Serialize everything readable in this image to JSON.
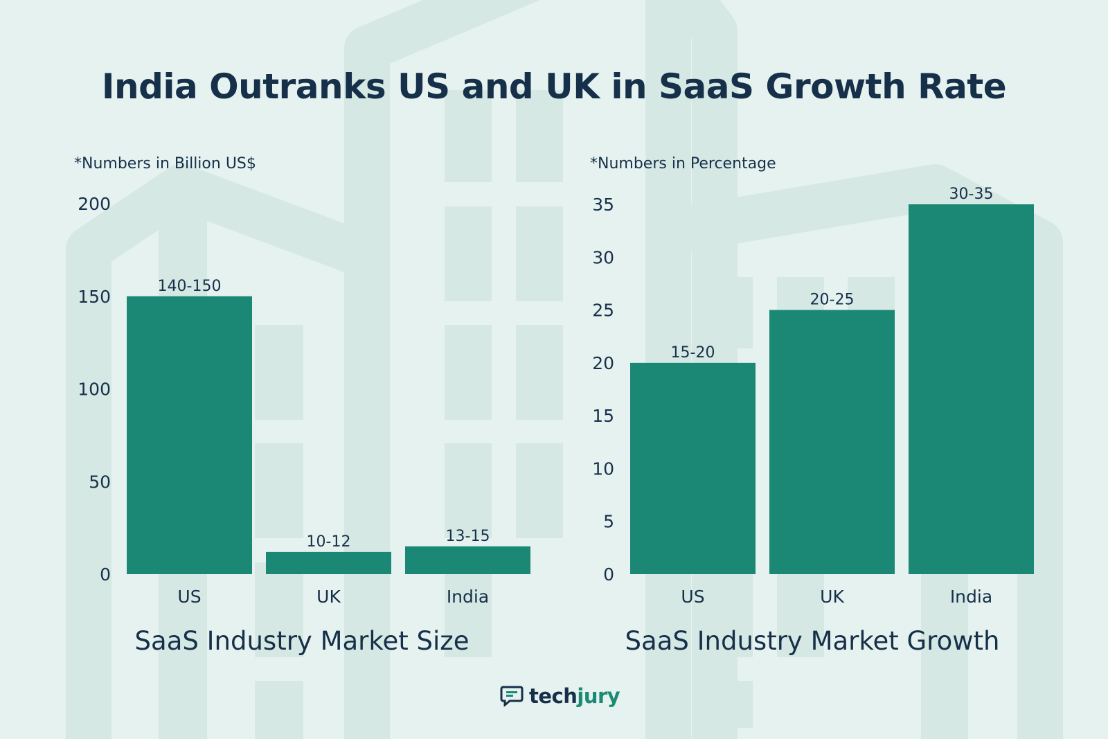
{
  "title": "India Outranks US and UK in SaaS Growth Rate",
  "colors": {
    "bar": "#1a8875",
    "text": "#16304a",
    "background": "#e6f2ef",
    "shape": "#d6e8e3"
  },
  "brand": {
    "part1": "tech",
    "part2": "jury",
    "icon": "chat-bubble-icon"
  },
  "chart_data": [
    {
      "type": "bar",
      "title": "SaaS Industry Market Size",
      "note": "*Numbers in Billion US$",
      "categories": [
        "US",
        "UK",
        "India"
      ],
      "values": [
        150,
        12,
        15
      ],
      "value_labels": [
        "140-150",
        "10-12",
        "13-15"
      ],
      "ylim": [
        0,
        200
      ],
      "yticks": [
        0,
        50,
        100,
        150,
        200
      ],
      "xlabel": "",
      "ylabel": ""
    },
    {
      "type": "bar",
      "title": "SaaS Industry Market Growth",
      "note": "*Numbers in Percentage",
      "categories": [
        "US",
        "UK",
        "India"
      ],
      "values": [
        20,
        25,
        35
      ],
      "value_labels": [
        "15-20",
        "20-25",
        "30-35"
      ],
      "ylim": [
        0,
        35
      ],
      "yticks": [
        0,
        5,
        10,
        15,
        20,
        25,
        30,
        35
      ],
      "xlabel": "",
      "ylabel": ""
    }
  ]
}
